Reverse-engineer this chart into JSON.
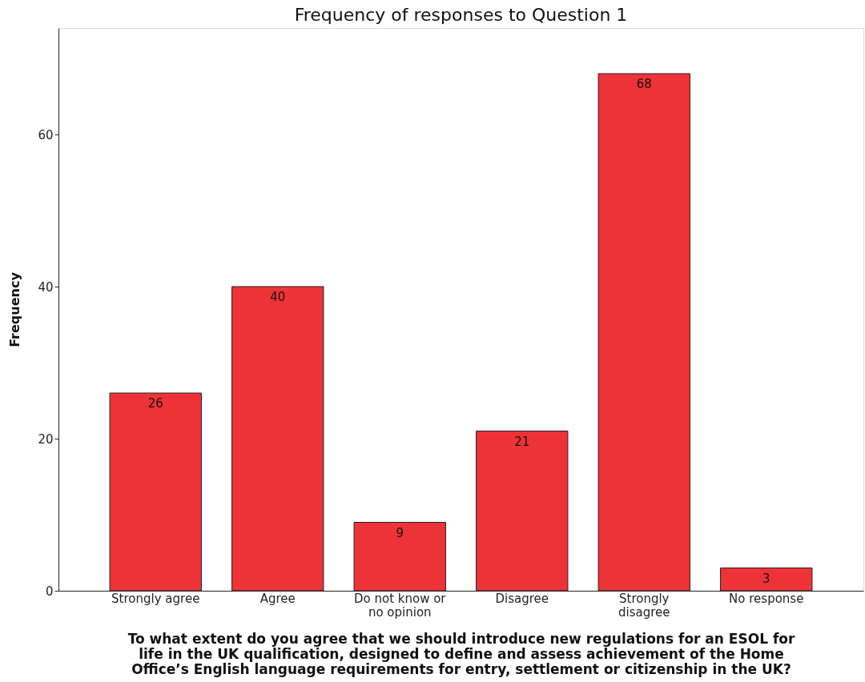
{
  "chart_data": {
    "type": "bar",
    "title": "Frequency of responses to Question 1",
    "xlabel": "To what extent do you agree that we should introduce new regulations for an ESOL for life in the UK qualification, designed to define and assess achievement of the Home Office’s English language requirements for entry, settlement or citizenship in the UK?",
    "ylabel": "Frequency",
    "categories": [
      "Strongly agree",
      "Agree",
      "Do not know or no opinion",
      "Disagree",
      "Strongly disagree",
      "No response"
    ],
    "values": [
      26,
      40,
      9,
      21,
      68,
      3
    ],
    "color": "#ee3338",
    "ylim": [
      0,
      74
    ],
    "yticks": [
      0,
      20,
      40,
      60
    ],
    "data_labels": true,
    "grid": false
  }
}
